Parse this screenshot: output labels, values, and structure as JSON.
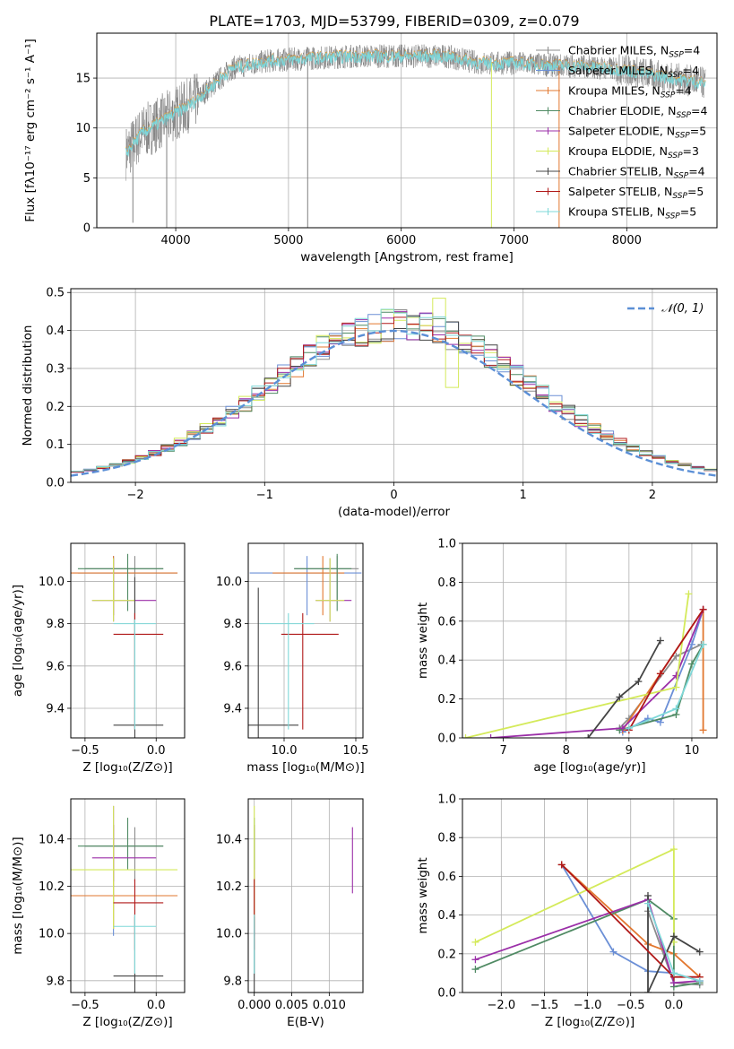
{
  "figure": {
    "title": "PLATE=1703, MJD=53799, FIBERID=0309, z=0.079"
  },
  "legend_models": [
    {
      "label": "Chabrier MILES, N",
      "sub": "SSP",
      "suffix": "=4",
      "color": "#8c8c8c"
    },
    {
      "label": "Salpeter MILES, N",
      "sub": "SSP",
      "suffix": "=4",
      "color": "#6b8fd6"
    },
    {
      "label": "Kroupa MILES, N",
      "sub": "SSP",
      "suffix": "=4",
      "color": "#e2772f"
    },
    {
      "label": "Chabrier ELODIE, N",
      "sub": "SSP",
      "suffix": "=4",
      "color": "#4f8a63"
    },
    {
      "label": "Salpeter ELODIE, N",
      "sub": "SSP",
      "suffix": "=5",
      "color": "#9b2fa8"
    },
    {
      "label": "Kroupa ELODIE, N",
      "sub": "SSP",
      "suffix": "=3",
      "color": "#d4ea5a"
    },
    {
      "label": "Chabrier STELIB, N",
      "sub": "SSP",
      "suffix": "=4",
      "color": "#444444"
    },
    {
      "label": "Salpeter STELIB, N",
      "sub": "SSP",
      "suffix": "=5",
      "color": "#b01818"
    },
    {
      "label": "Kroupa STELIB, N",
      "sub": "SSP",
      "suffix": "=5",
      "color": "#7fd8d8"
    }
  ],
  "chart_data": [
    {
      "id": "spectrum",
      "type": "line",
      "xlabel": "wavelength [Angstrom, rest frame]",
      "ylabel": "Flux [fλ10⁻¹⁷ erg cm⁻² s⁻¹ A⁻¹]",
      "xlim": [
        3300,
        8800
      ],
      "ylim": [
        0,
        19.5
      ],
      "xticks": [
        4000,
        5000,
        6000,
        7000,
        8000
      ],
      "yticks": [
        0,
        5,
        10,
        15
      ],
      "data_color": "#808080",
      "model_color": "#7fd8d8",
      "continuum": [
        [
          3560,
          7.5
        ],
        [
          3700,
          9.5
        ],
        [
          3850,
          10.5
        ],
        [
          4000,
          11.5
        ],
        [
          4150,
          12.5
        ],
        [
          4300,
          14
        ],
        [
          4500,
          16
        ],
        [
          4800,
          16.7
        ],
        [
          5200,
          17
        ],
        [
          5600,
          17.2
        ],
        [
          6000,
          17.2
        ],
        [
          6400,
          17.2
        ],
        [
          6700,
          16.5
        ],
        [
          7000,
          16.5
        ],
        [
          7300,
          16.3
        ],
        [
          7600,
          16.2
        ],
        [
          8000,
          15.8
        ],
        [
          8400,
          15
        ],
        [
          8700,
          14.5
        ]
      ],
      "drops": [
        [
          3920,
          0
        ],
        [
          5170,
          0
        ],
        [
          6800,
          0
        ],
        [
          7400,
          0
        ],
        [
          3620,
          0.5
        ]
      ]
    },
    {
      "id": "residuals",
      "type": "histogram",
      "xlabel": "(data-model)/error",
      "ylabel": "Normed distribution",
      "xlim": [
        -2.5,
        2.5
      ],
      "ylim": [
        0,
        0.51
      ],
      "xticks": [
        -2,
        -1,
        0,
        1,
        2
      ],
      "yticks": [
        0.0,
        0.1,
        0.2,
        0.3,
        0.4,
        0.5
      ],
      "legend": "𝒩(0, 1)",
      "normal_color": "#5b8fd6",
      "bin_width": 0.1
    },
    {
      "id": "age-vs-Z",
      "type": "scatter",
      "xlabel": "Z [log₁₀(Z/Z⊙)]",
      "ylabel": "age  [log₁₀(age/yr)]",
      "xlim": [
        -0.6,
        0.2
      ],
      "ylim": [
        9.26,
        10.18
      ],
      "xticks": [
        -0.5,
        0.0
      ],
      "yticks": [
        9.4,
        9.6,
        9.8,
        10.0
      ],
      "points": [
        {
          "x": -0.15,
          "y": 10.06,
          "xerr": [
            0.35,
            0.2
          ],
          "yerr": [
            0.15,
            0.06
          ],
          "model": 0
        },
        {
          "x": -0.3,
          "y": 10.04,
          "xerr": [
            0.25,
            0.45
          ],
          "yerr": [
            0.2,
            0.08
          ],
          "model": 1
        },
        {
          "x": -0.3,
          "y": 10.04,
          "xerr": [
            0.35,
            0.45
          ],
          "yerr": [
            0.2,
            0.08
          ],
          "model": 2
        },
        {
          "x": -0.2,
          "y": 10.06,
          "xerr": [
            0.35,
            0.25
          ],
          "yerr": [
            0.2,
            0.07
          ],
          "model": 3
        },
        {
          "x": -0.3,
          "y": 9.91,
          "xerr": [
            0.15,
            0.3
          ],
          "yerr": [
            0.1,
            0.2
          ],
          "model": 4
        },
        {
          "x": -0.3,
          "y": 9.91,
          "xerr": [
            0.15,
            0.15
          ],
          "yerr": [
            0.1,
            0.2
          ],
          "model": 5
        },
        {
          "x": -0.15,
          "y": 9.32,
          "xerr": [
            0.15,
            0.2
          ],
          "yerr": [
            0.1,
            0.7
          ],
          "model": 6
        },
        {
          "x": -0.15,
          "y": 9.75,
          "xerr": [
            0.15,
            0.2
          ],
          "yerr": [
            0.45,
            0.1
          ],
          "model": 7
        },
        {
          "x": -0.15,
          "y": 9.8,
          "xerr": [
            0.15,
            0.15
          ],
          "yerr": [
            0.5,
            0.02
          ],
          "model": 8
        }
      ]
    },
    {
      "id": "age-vs-mass",
      "type": "scatter",
      "xlabel": "mass [log₁₀(M/M⊙)]",
      "ylabel": "",
      "xlim": [
        9.75,
        10.55
      ],
      "ylim": [
        9.26,
        10.18
      ],
      "xticks": [
        10.0,
        10.5
      ],
      "yticks": [
        9.4,
        9.6,
        9.8,
        10.0
      ],
      "points": [
        {
          "x": 10.37,
          "y": 10.06,
          "xerr": [
            0.3,
            0.15
          ],
          "yerr": [
            0.15,
            0.06
          ],
          "model": 0
        },
        {
          "x": 10.16,
          "y": 10.04,
          "xerr": [
            0.4,
            0.38
          ],
          "yerr": [
            0.2,
            0.08
          ],
          "model": 1
        },
        {
          "x": 10.27,
          "y": 10.04,
          "xerr": [
            0.35,
            0.15
          ],
          "yerr": [
            0.2,
            0.08
          ],
          "model": 2
        },
        {
          "x": 10.37,
          "y": 10.06,
          "xerr": [
            0.3,
            0.1
          ],
          "yerr": [
            0.2,
            0.07
          ],
          "model": 3
        },
        {
          "x": 10.32,
          "y": 9.91,
          "xerr": [
            0.1,
            0.15
          ],
          "yerr": [
            0.1,
            0.2
          ],
          "model": 4
        },
        {
          "x": 10.32,
          "y": 9.91,
          "xerr": [
            0.1,
            0.1
          ],
          "yerr": [
            0.1,
            0.2
          ],
          "model": 5
        },
        {
          "x": 9.82,
          "y": 9.32,
          "xerr": [
            0.15,
            0.28
          ],
          "yerr": [
            0.1,
            0.65
          ],
          "model": 6
        },
        {
          "x": 10.13,
          "y": 9.75,
          "xerr": [
            0.15,
            0.25
          ],
          "yerr": [
            0.45,
            0.1
          ],
          "model": 7
        },
        {
          "x": 10.03,
          "y": 9.8,
          "xerr": [
            0.2,
            0.18
          ],
          "yerr": [
            0.5,
            0.05
          ],
          "model": 8
        }
      ]
    },
    {
      "id": "weight-vs-age",
      "type": "line",
      "xlabel": "age  [log₁₀(age/yr)]",
      "ylabel": "mass weight",
      "xlim": [
        6.35,
        10.4
      ],
      "ylim": [
        0,
        1.0
      ],
      "xticks": [
        7,
        8,
        9,
        10
      ],
      "yticks": [
        0.0,
        0.2,
        0.4,
        0.6,
        0.8,
        1.0
      ],
      "series": [
        {
          "model": 0,
          "points": [
            [
              8.85,
              0.05
            ],
            [
              9.0,
              0.1
            ],
            [
              9.75,
              0.42
            ],
            [
              10.15,
              0.48
            ]
          ]
        },
        {
          "model": 1,
          "points": [
            [
              8.9,
              0.03
            ],
            [
              9.3,
              0.1
            ],
            [
              9.5,
              0.08
            ],
            [
              10.0,
              0.48
            ],
            [
              10.18,
              0.66
            ]
          ]
        },
        {
          "model": 2,
          "points": [
            [
              8.9,
              0.04
            ],
            [
              9.5,
              0.33
            ],
            [
              10.18,
              0.66
            ],
            [
              10.18,
              0.04
            ]
          ]
        },
        {
          "model": 3,
          "points": [
            [
              8.85,
              0.04
            ],
            [
              9.75,
              0.12
            ],
            [
              10.0,
              0.38
            ],
            [
              10.18,
              0.48
            ]
          ]
        },
        {
          "model": 4,
          "points": [
            [
              6.8,
              0.0
            ],
            [
              8.9,
              0.05
            ],
            [
              9.75,
              0.32
            ],
            [
              10.18,
              0.66
            ]
          ]
        },
        {
          "model": 5,
          "points": [
            [
              6.4,
              0.0
            ],
            [
              9.75,
              0.26
            ],
            [
              9.95,
              0.74
            ]
          ]
        },
        {
          "model": 6,
          "points": [
            [
              8.35,
              0.0
            ],
            [
              8.85,
              0.21
            ],
            [
              9.15,
              0.29
            ],
            [
              9.5,
              0.5
            ]
          ]
        },
        {
          "model": 7,
          "points": [
            [
              9.0,
              0.04
            ],
            [
              9.5,
              0.33
            ],
            [
              10.18,
              0.66
            ]
          ]
        },
        {
          "model": 8,
          "points": [
            [
              9.0,
              0.05
            ],
            [
              9.75,
              0.15
            ],
            [
              10.18,
              0.48
            ]
          ]
        }
      ]
    },
    {
      "id": "mass-vs-Z",
      "type": "scatter",
      "xlabel": "Z [log₁₀(Z/Z⊙)]",
      "ylabel": "mass [log₁₀(M/M⊙)]",
      "xlim": [
        -0.6,
        0.2
      ],
      "ylim": [
        9.75,
        10.57
      ],
      "xticks": [
        -0.5,
        0.0
      ],
      "yticks": [
        9.8,
        10.0,
        10.2,
        10.4
      ],
      "points": [
        {
          "x": -0.15,
          "y": 10.37,
          "xerr": [
            0.35,
            0.2
          ],
          "yerr": [
            0.15,
            0.08
          ],
          "model": 0
        },
        {
          "x": -0.3,
          "y": 10.16,
          "xerr": [
            0.25,
            0.45
          ],
          "yerr": [
            0.17,
            0.3
          ],
          "model": 1
        },
        {
          "x": -0.3,
          "y": 10.16,
          "xerr": [
            0.35,
            0.45
          ],
          "yerr": [
            0.14,
            0.3
          ],
          "model": 2
        },
        {
          "x": -0.2,
          "y": 10.37,
          "xerr": [
            0.35,
            0.25
          ],
          "yerr": [
            0.1,
            0.12
          ],
          "model": 3
        },
        {
          "x": -0.3,
          "y": 10.32,
          "xerr": [
            0.15,
            0.3
          ],
          "yerr": [
            0.1,
            0.22
          ],
          "model": 4
        },
        {
          "x": -0.3,
          "y": 10.27,
          "xerr": [
            0.45,
            0.45
          ],
          "yerr": [
            0.25,
            0.27
          ],
          "model": 5
        },
        {
          "x": -0.15,
          "y": 9.82,
          "xerr": [
            0.15,
            0.2
          ],
          "yerr": [
            0.1,
            0.25
          ],
          "model": 6
        },
        {
          "x": -0.15,
          "y": 10.13,
          "xerr": [
            0.15,
            0.2
          ],
          "yerr": [
            0.2,
            0.1
          ],
          "model": 7
        },
        {
          "x": -0.15,
          "y": 10.03,
          "xerr": [
            0.15,
            0.15
          ],
          "yerr": [
            0.2,
            0.05
          ],
          "model": 8
        }
      ]
    },
    {
      "id": "mass-vs-ebv",
      "type": "scatter",
      "xlabel": "E(B-V)",
      "ylabel": "",
      "xlim": [
        -0.0008,
        0.0145
      ],
      "ylim": [
        9.75,
        10.57
      ],
      "xticks": [
        0.0,
        0.005,
        0.01
      ],
      "xticklabels": [
        "0.000",
        "0.005",
        "0.010"
      ],
      "yticks": [
        9.8,
        10.0,
        10.2,
        10.4
      ],
      "points": [
        {
          "x": 0.0,
          "y": 10.37,
          "yerr": [
            0.15,
            0.08
          ],
          "model": 0
        },
        {
          "x": 0.0,
          "y": 10.16,
          "yerr": [
            0.17,
            0.3
          ],
          "model": 1
        },
        {
          "x": 0.0,
          "y": 10.16,
          "yerr": [
            0.14,
            0.3
          ],
          "model": 2
        },
        {
          "x": 0.0,
          "y": 10.37,
          "yerr": [
            0.1,
            0.12
          ],
          "model": 3
        },
        {
          "x": 0.0131,
          "y": 10.31,
          "yerr": [
            0.14,
            0.14
          ],
          "model": 4
        },
        {
          "x": 0.0,
          "y": 10.27,
          "yerr": [
            0.25,
            0.27
          ],
          "model": 5
        },
        {
          "x": 0.0,
          "y": 9.82,
          "yerr": [
            0.1,
            0.25
          ],
          "model": 6
        },
        {
          "x": 0.0,
          "y": 10.13,
          "yerr": [
            0.2,
            0.1
          ],
          "model": 7
        },
        {
          "x": 0.0,
          "y": 10.03,
          "yerr": [
            0.2,
            0.05
          ],
          "model": 8
        }
      ]
    },
    {
      "id": "weight-vs-Z",
      "type": "line",
      "xlabel": "Z [log₁₀(Z/Z⊙)]",
      "ylabel": "mass weight",
      "xlim": [
        -2.45,
        0.5
      ],
      "ylim": [
        0,
        1.0
      ],
      "xticks": [
        -2.0,
        -1.5,
        -1.0,
        -0.5,
        0.0
      ],
      "yticks": [
        0.0,
        0.2,
        0.4,
        0.6,
        0.8,
        1.0
      ],
      "series": [
        {
          "model": 0,
          "points": [
            [
              -0.3,
              0.42
            ],
            [
              0.0,
              0.05
            ],
            [
              0.3,
              0.04
            ]
          ]
        },
        {
          "model": 1,
          "points": [
            [
              -1.3,
              0.66
            ],
            [
              -0.7,
              0.21
            ],
            [
              -0.3,
              0.11
            ],
            [
              0.0,
              0.1
            ],
            [
              0.3,
              0.06
            ]
          ]
        },
        {
          "model": 2,
          "points": [
            [
              -1.3,
              0.66
            ],
            [
              -0.3,
              0.25
            ],
            [
              0.0,
              0.2
            ],
            [
              0.3,
              0.08
            ]
          ]
        },
        {
          "model": 3,
          "points": [
            [
              -2.3,
              0.12
            ],
            [
              -0.3,
              0.48
            ],
            [
              0.0,
              0.38
            ],
            [
              0.0,
              0.03
            ],
            [
              0.3,
              0.05
            ]
          ]
        },
        {
          "model": 4,
          "points": [
            [
              -2.3,
              0.17
            ],
            [
              -0.3,
              0.48
            ],
            [
              0.0,
              0.05
            ],
            [
              0.3,
              0.06
            ]
          ]
        },
        {
          "model": 5,
          "points": [
            [
              -2.3,
              0.26
            ],
            [
              0.0,
              0.74
            ],
            [
              0.0,
              0.26
            ]
          ]
        },
        {
          "model": 6,
          "points": [
            [
              -0.3,
              0.5
            ],
            [
              -0.3,
              0.0
            ],
            [
              0.0,
              0.29
            ],
            [
              0.3,
              0.21
            ]
          ]
        },
        {
          "model": 7,
          "points": [
            [
              -1.3,
              0.66
            ],
            [
              0.0,
              0.08
            ],
            [
              0.3,
              0.08
            ]
          ]
        },
        {
          "model": 8,
          "points": [
            [
              -0.3,
              0.46
            ],
            [
              0.0,
              0.1
            ],
            [
              0.3,
              0.06
            ]
          ]
        }
      ]
    }
  ]
}
